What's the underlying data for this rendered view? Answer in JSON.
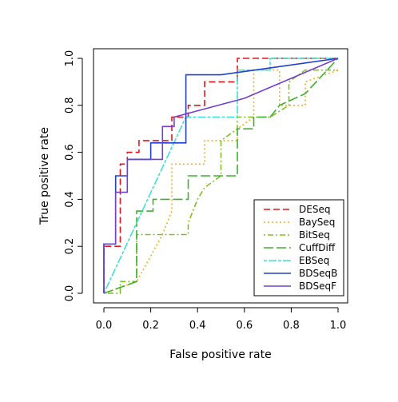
{
  "chart_data": {
    "type": "line",
    "xlabel": "False positive rate",
    "ylabel": "True positive rate",
    "xlim": [
      0,
      1
    ],
    "ylim": [
      0,
      1
    ],
    "x_ticks": [
      "0.0",
      "0.2",
      "0.4",
      "0.6",
      "0.8",
      "1.0"
    ],
    "y_ticks": [
      "0.0",
      "0.2",
      "0.4",
      "0.6",
      "0.8",
      "1.0"
    ],
    "grid": false,
    "legend_position": "bottom-right",
    "series": [
      {
        "name": "DESeq",
        "color": "#e8141c",
        "dash": "dashed",
        "points": [
          [
            0,
            0
          ],
          [
            0,
            0.2
          ],
          [
            0.07,
            0.2
          ],
          [
            0.07,
            0.55
          ],
          [
            0.1,
            0.55
          ],
          [
            0.1,
            0.6
          ],
          [
            0.15,
            0.6
          ],
          [
            0.15,
            0.65
          ],
          [
            0.29,
            0.65
          ],
          [
            0.29,
            0.75
          ],
          [
            0.36,
            0.75
          ],
          [
            0.36,
            0.8
          ],
          [
            0.43,
            0.8
          ],
          [
            0.43,
            0.9
          ],
          [
            0.57,
            0.9
          ],
          [
            0.57,
            1.0
          ],
          [
            1.0,
            1.0
          ]
        ]
      },
      {
        "name": "BaySeq",
        "color": "#f0b020",
        "dash": "dotted",
        "points": [
          [
            0,
            0
          ],
          [
            0.14,
            0.05
          ],
          [
            0.25,
            0.25
          ],
          [
            0.29,
            0.35
          ],
          [
            0.29,
            0.55
          ],
          [
            0.43,
            0.55
          ],
          [
            0.43,
            0.65
          ],
          [
            0.57,
            0.65
          ],
          [
            0.57,
            0.7
          ],
          [
            0.64,
            0.75
          ],
          [
            0.64,
            0.95
          ],
          [
            0.75,
            0.95
          ],
          [
            0.75,
            0.8
          ],
          [
            0.86,
            0.8
          ],
          [
            0.86,
            0.9
          ],
          [
            1.0,
            0.95
          ]
        ]
      },
      {
        "name": "BitSeq",
        "color": "#80c020",
        "dash": "dotdash",
        "points": [
          [
            0,
            0
          ],
          [
            0.07,
            0
          ],
          [
            0.07,
            0.05
          ],
          [
            0.14,
            0.05
          ],
          [
            0.14,
            0.25
          ],
          [
            0.36,
            0.25
          ],
          [
            0.36,
            0.3
          ],
          [
            0.4,
            0.4
          ],
          [
            0.43,
            0.45
          ],
          [
            0.5,
            0.5
          ],
          [
            0.5,
            0.65
          ],
          [
            0.57,
            0.7
          ],
          [
            0.57,
            0.75
          ],
          [
            0.71,
            0.75
          ],
          [
            0.79,
            0.8
          ],
          [
            0.79,
            0.9
          ],
          [
            0.86,
            0.95
          ],
          [
            1.0,
            0.95
          ]
        ]
      },
      {
        "name": "CuffDiff",
        "color": "#40b030",
        "dash": "longdash",
        "points": [
          [
            0,
            0
          ],
          [
            0.14,
            0.05
          ],
          [
            0.14,
            0.35
          ],
          [
            0.21,
            0.35
          ],
          [
            0.21,
            0.4
          ],
          [
            0.36,
            0.4
          ],
          [
            0.36,
            0.5
          ],
          [
            0.57,
            0.5
          ],
          [
            0.57,
            0.7
          ],
          [
            0.64,
            0.7
          ],
          [
            0.64,
            0.75
          ],
          [
            0.71,
            0.75
          ],
          [
            0.75,
            0.8
          ],
          [
            0.86,
            0.85
          ],
          [
            1.0,
            1.0
          ]
        ]
      },
      {
        "name": "EBSeq",
        "color": "#40e0d0",
        "dash": "twodash",
        "points": [
          [
            0,
            0
          ],
          [
            0.35,
            0.75
          ],
          [
            0.57,
            0.75
          ],
          [
            0.57,
            0.95
          ],
          [
            0.71,
            0.95
          ],
          [
            0.71,
            1.0
          ],
          [
            1.0,
            1.0
          ]
        ]
      },
      {
        "name": "BDSeqB",
        "color": "#2040d0",
        "dash": "solid",
        "points": [
          [
            0,
            0
          ],
          [
            0,
            0.21
          ],
          [
            0.05,
            0.21
          ],
          [
            0.05,
            0.5
          ],
          [
            0.1,
            0.5
          ],
          [
            0.1,
            0.57
          ],
          [
            0.2,
            0.57
          ],
          [
            0.2,
            0.64
          ],
          [
            0.35,
            0.64
          ],
          [
            0.35,
            0.93
          ],
          [
            0.5,
            0.93
          ],
          [
            1.0,
            1.0
          ]
        ]
      },
      {
        "name": "BDSeqF",
        "color": "#7040d0",
        "dash": "solid",
        "points": [
          [
            0,
            0
          ],
          [
            0,
            0.21
          ],
          [
            0.05,
            0.21
          ],
          [
            0.05,
            0.43
          ],
          [
            0.1,
            0.43
          ],
          [
            0.1,
            0.57
          ],
          [
            0.25,
            0.57
          ],
          [
            0.25,
            0.71
          ],
          [
            0.3,
            0.71
          ],
          [
            0.3,
            0.75
          ],
          [
            0.6,
            0.83
          ],
          [
            1.0,
            1.0
          ]
        ]
      }
    ]
  }
}
